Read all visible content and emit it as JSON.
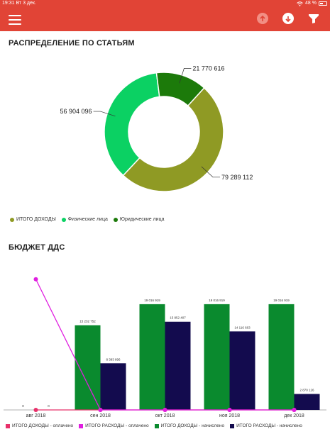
{
  "status_bar": {
    "time": "19:31",
    "date": "Вт 3 дек.",
    "battery": "48 %",
    "wifi_icon": "wifi-icon"
  },
  "app_bar": {
    "menu_icon": "hamburger-menu-icon",
    "upload_icon": "arrow-up-circle-icon",
    "download_icon": "arrow-down-circle-icon",
    "filter_icon": "funnel-filter-icon",
    "background": "#e14436"
  },
  "distribution": {
    "title": "РАСПРЕДЕЛЕНИЕ ПО СТАТЬЯМ",
    "chart_data": {
      "type": "pie",
      "title": "РАСПРЕДЕЛЕНИЕ ПО СТАТЬЯМ",
      "donut": true,
      "slices": [
        {
          "label": "79 289 112",
          "value": 79289112,
          "color": "#8f9a24"
        },
        {
          "label": "56 904 096",
          "value": 56904096,
          "color": "#0bd163"
        },
        {
          "label": "21 770 616",
          "value": 21770616,
          "color": "#1c7a0a"
        }
      ],
      "legend": [
        {
          "name": "ИТОГО ДОХОДЫ",
          "color": "#8f9a24"
        },
        {
          "name": "Физические лица",
          "color": "#0bd163"
        },
        {
          "name": "Юридические  лица",
          "color": "#1c7a0a"
        }
      ],
      "legend_position": "bottom-left"
    }
  },
  "budget": {
    "title": "БЮДЖЕТ ДДС",
    "chart_data": {
      "type": "bar",
      "title": "БЮДЖЕТ ДДС",
      "categories": [
        "авг 2018",
        "сен 2018",
        "окт 2018",
        "ноя 2018",
        "дек 2018"
      ],
      "series": [
        {
          "name": "ИТОГО ДОХОДЫ - начислено",
          "kind": "bar",
          "color": "#0a8a2e",
          "values": [
            0,
            15232752,
            19016919,
            19016919,
            19016919
          ],
          "labels": [
            "0",
            "15 232 752",
            "19 016 919",
            "19 016 919",
            "19 016 919"
          ]
        },
        {
          "name": "ИТОГО РАСХОДЫ - начислено",
          "kind": "bar",
          "color": "#130b4e",
          "values": [
            0,
            8383896,
            15852407,
            14116663,
            2870126
          ],
          "labels": [
            "0",
            "8 383 896",
            "15 852 407",
            "14 116 663",
            "2 870 126"
          ]
        },
        {
          "name": "ИТОГО ДОХОДЫ - оплачено",
          "kind": "line",
          "color": "#e8306a",
          "values": [
            0,
            0,
            0,
            0,
            0
          ]
        },
        {
          "name": "ИТОГО РАСХОДЫ - оплачено",
          "kind": "line",
          "color": "#e01ee0",
          "values": [
            23500000,
            0,
            0,
            0,
            0
          ]
        }
      ],
      "ylim": [
        0,
        25000000
      ],
      "grid": false,
      "legend_position": "bottom"
    }
  }
}
